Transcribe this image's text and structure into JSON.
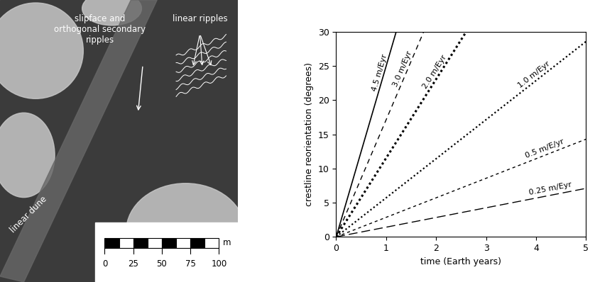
{
  "chart_data": {
    "type": "line",
    "xlabel": "time (Earth years)",
    "ylabel": "crestline reorientation (degrees)",
    "xlim": [
      0,
      5
    ],
    "ylim": [
      0,
      30
    ],
    "xticks": [
      0,
      1,
      2,
      3,
      4,
      5
    ],
    "yticks": [
      0,
      5,
      10,
      15,
      20,
      25,
      30
    ],
    "series": [
      {
        "name": "4.5 m/Eyr",
        "color": "#000000",
        "line_style": "solid",
        "x": [
          0,
          1.2
        ],
        "values": [
          0,
          30
        ]
      },
      {
        "name": "3.0 m/Eyr",
        "color": "#000000",
        "line_style": "dashed",
        "x": [
          0,
          1.75
        ],
        "values": [
          0,
          30
        ]
      },
      {
        "name": "2.0 m/Eyr",
        "color": "#000000",
        "line_style": "heavy_dotted",
        "x": [
          0,
          2.6
        ],
        "values": [
          0,
          30
        ]
      },
      {
        "name": "1.0 m/Eyr",
        "color": "#000000",
        "line_style": "dotted",
        "x": [
          0,
          5
        ],
        "values": [
          0,
          28.6
        ]
      },
      {
        "name": "0.5 m/E/yr",
        "color": "#000000",
        "line_style": "short_dashed",
        "x": [
          0,
          5
        ],
        "values": [
          0,
          14.3
        ]
      },
      {
        "name": "0.25 m/Eyr",
        "color": "#000000",
        "line_style": "long_dashed",
        "x": [
          0,
          5
        ],
        "values": [
          0,
          7.1
        ]
      }
    ]
  },
  "image": {
    "annotations": [
      "slipface and\northogonal secondary\nripples",
      "linear ripples",
      "linear dune"
    ],
    "scale_bar": {
      "ticks": [
        0,
        25,
        50,
        75,
        100
      ],
      "unit": "m"
    }
  }
}
